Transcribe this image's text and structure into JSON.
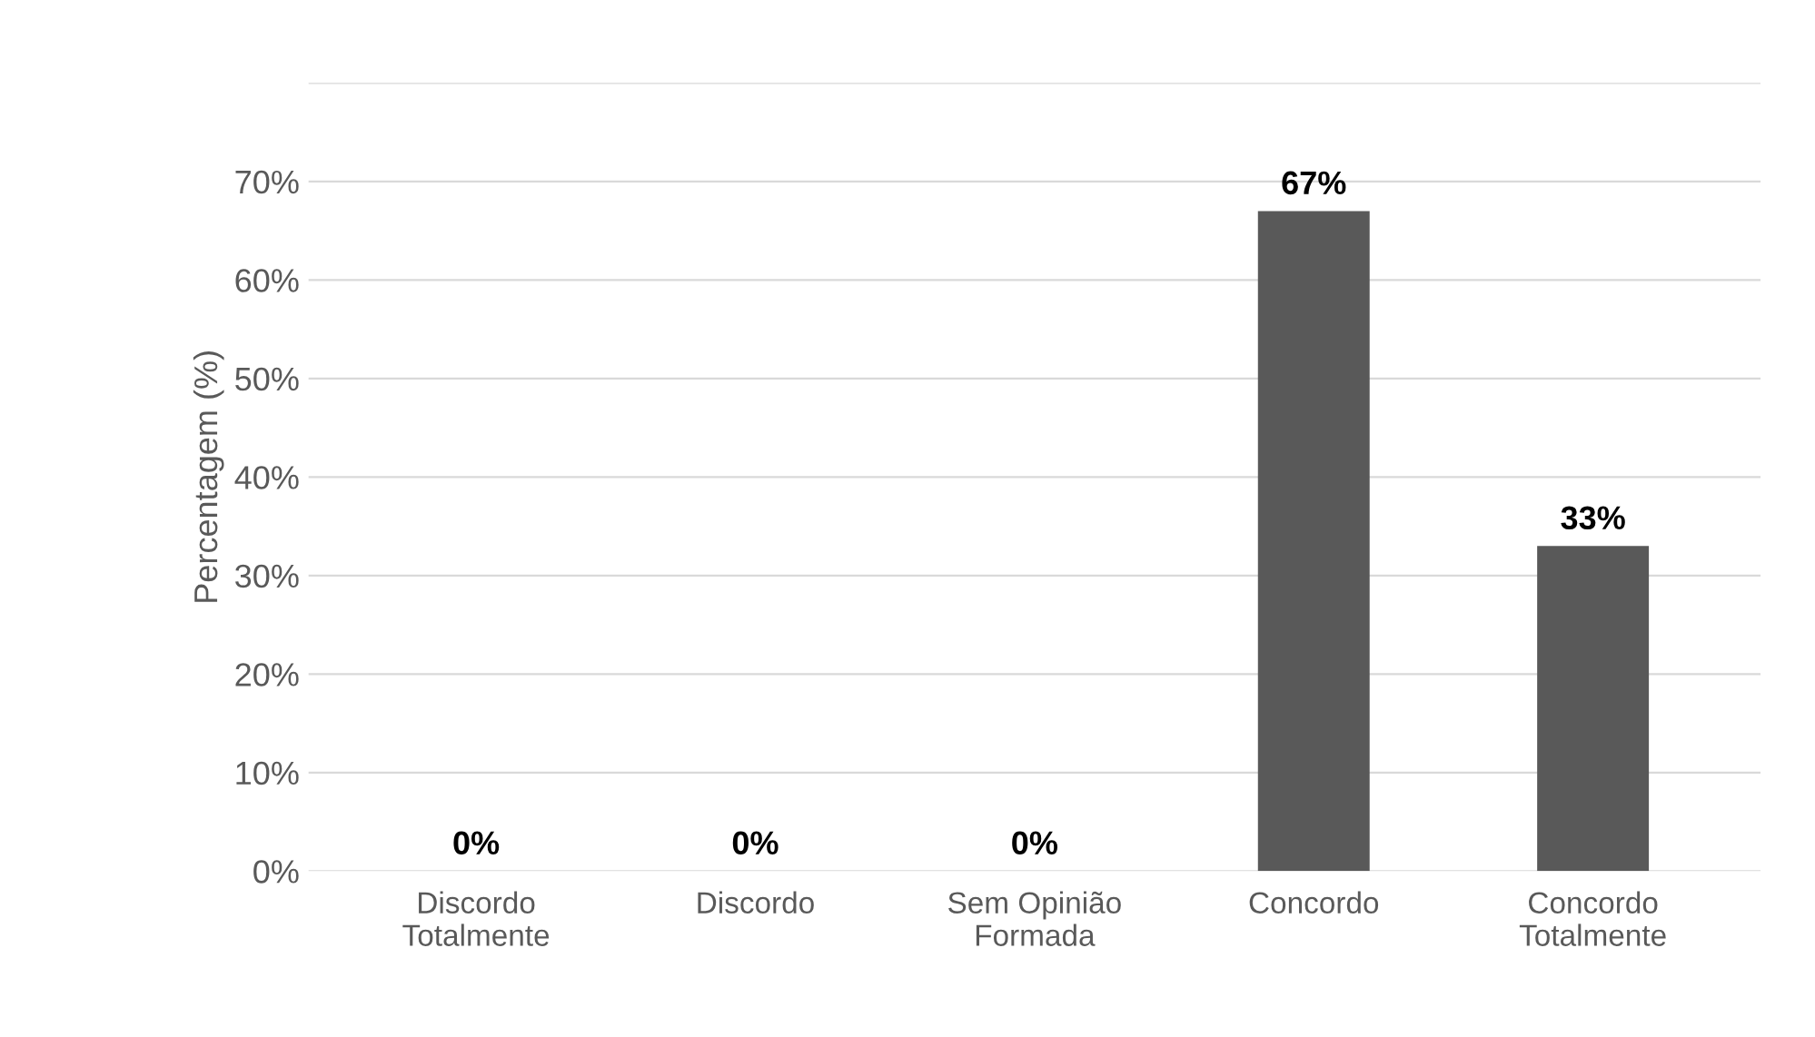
{
  "chart_data": {
    "type": "bar",
    "ylabel": "Percentagem (%)",
    "categories": [
      "Discordo\nTotalmente",
      "Discordo",
      "Sem Opinião\nFormada",
      "Concordo",
      "Concordo\nTotalmente"
    ],
    "values": [
      0,
      0,
      0,
      67,
      33
    ],
    "value_labels": [
      "0%",
      "0%",
      "0%",
      "67%",
      "33%"
    ],
    "color": "#595959",
    "ylim": [
      0,
      80
    ],
    "yticks": [
      {
        "value": 0,
        "label": "0%"
      },
      {
        "value": 10,
        "label": "10%"
      },
      {
        "value": 20,
        "label": "20%"
      },
      {
        "value": 30,
        "label": "30%"
      },
      {
        "value": 40,
        "label": "40%"
      },
      {
        "value": 50,
        "label": "50%"
      },
      {
        "value": 60,
        "label": "60%"
      },
      {
        "value": 70,
        "label": "70%"
      },
      {
        "value": 80,
        "label": null
      }
    ],
    "grid": "y"
  }
}
